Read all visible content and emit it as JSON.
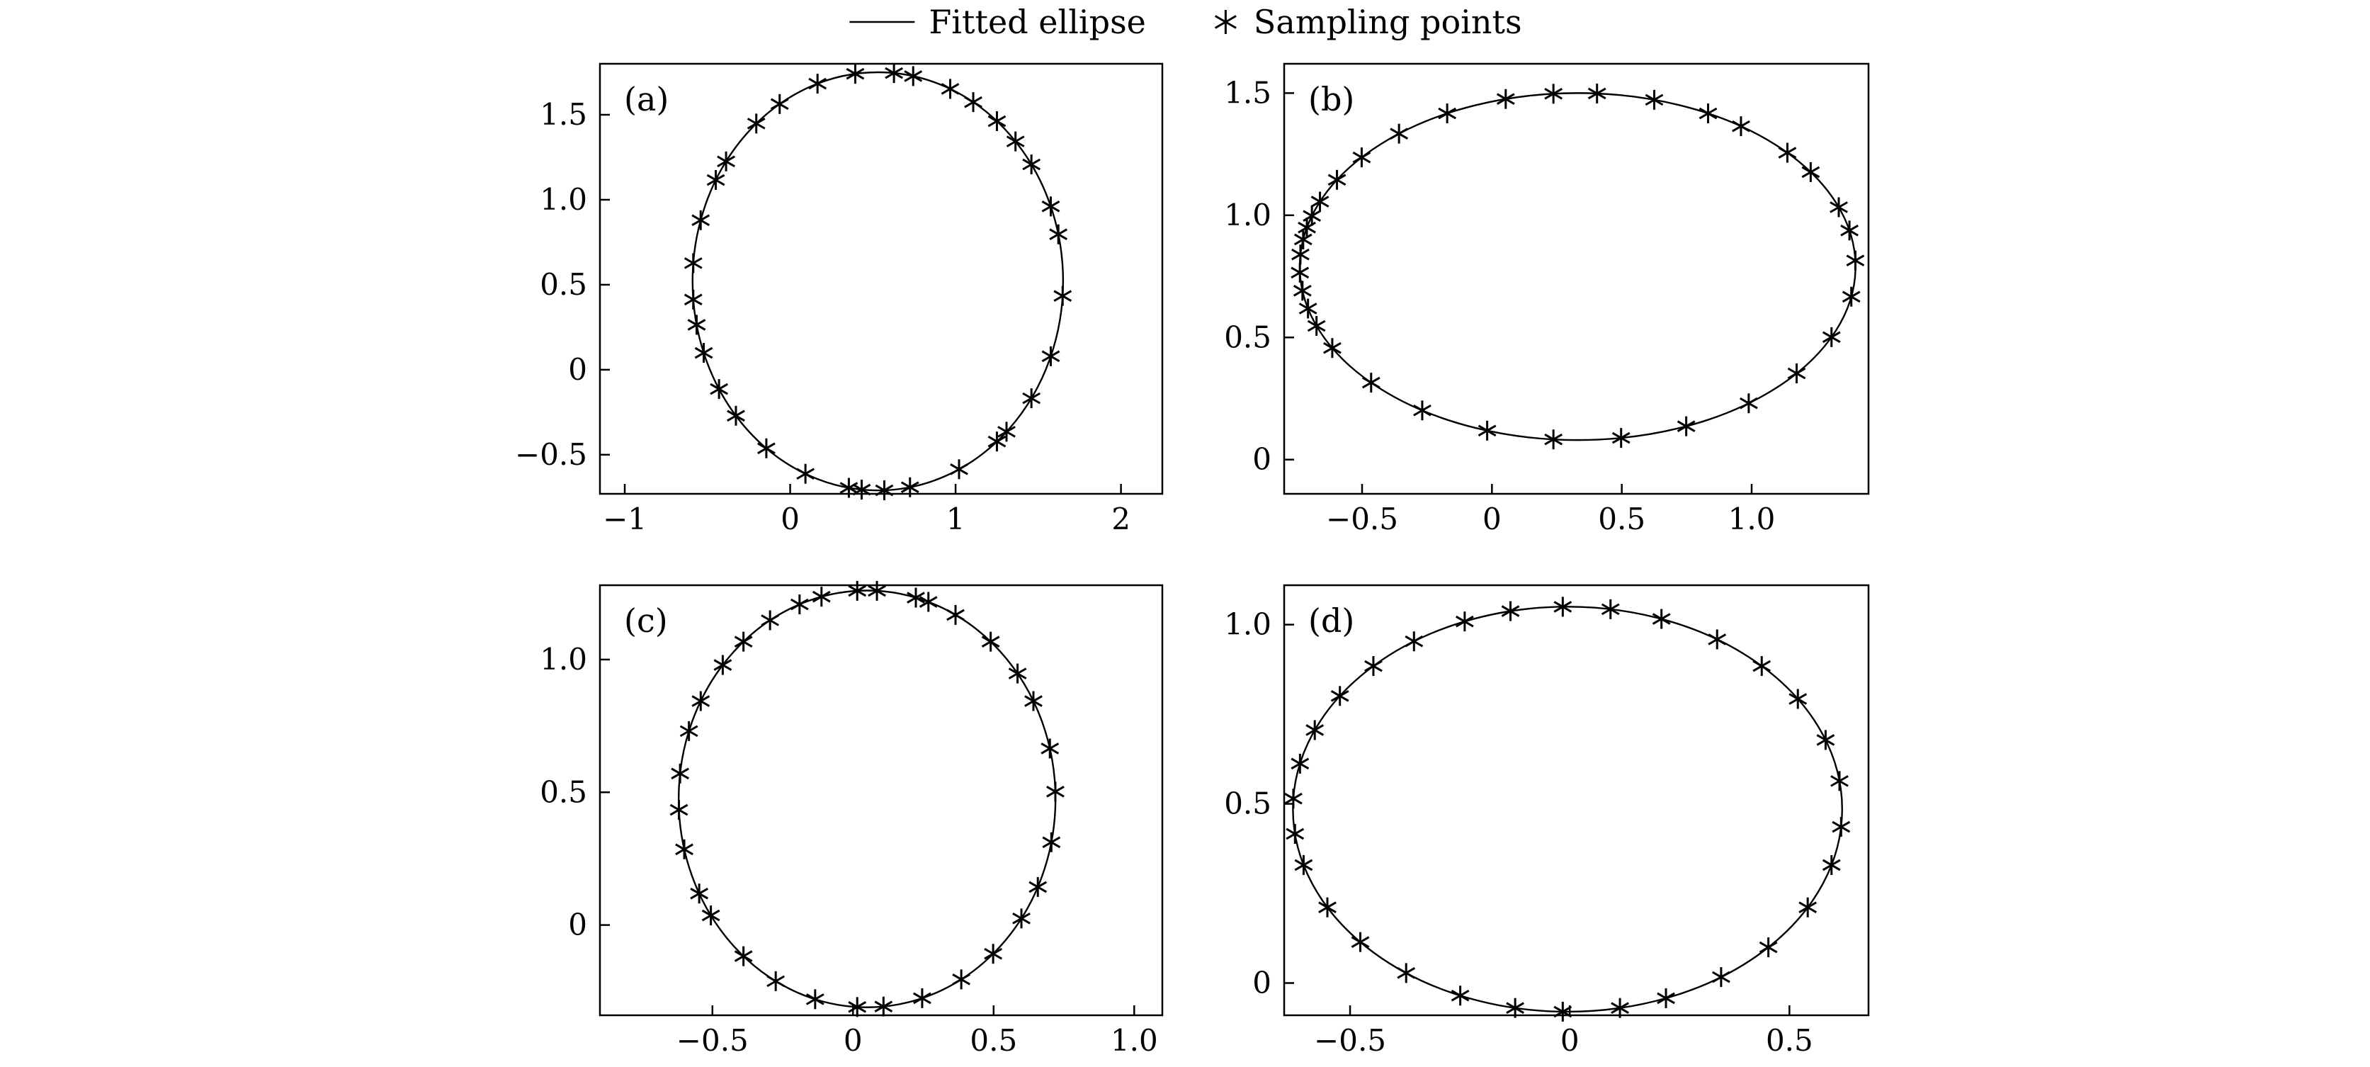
{
  "figure": {
    "background": "#ffffff",
    "line_color": "#000000",
    "marker": "asterisk-icon",
    "legend": {
      "position": "top-center",
      "items": [
        {
          "type": "line",
          "label": "Fitted ellipse"
        },
        {
          "type": "asterisk",
          "label": "Sampling points"
        }
      ]
    }
  },
  "chart_data": [
    {
      "type": "scatter",
      "panel": "(a)",
      "title": "",
      "xlabel": "",
      "ylabel": "",
      "grid": false,
      "xlim": [
        -1.15,
        2.25
      ],
      "ylim": [
        -0.73,
        1.8
      ],
      "xticks": {
        "values": [
          -1,
          0,
          1,
          2
        ],
        "labels": [
          "−1",
          "0",
          "1",
          "2"
        ]
      },
      "yticks": {
        "values": [
          -0.5,
          0,
          0.5,
          1.0,
          1.5
        ],
        "labels": [
          "−0.5",
          "0",
          "0.5",
          "1.0",
          "1.5"
        ]
      },
      "series": [
        {
          "name": "Fitted ellipse",
          "kind": "ellipse-outline"
        },
        {
          "name": "Sampling points",
          "kind": "markers-on-ellipse"
        }
      ],
      "ellipse": {
        "cx": 0.53,
        "cy": 0.52,
        "rx": 1.12,
        "ry": 1.23,
        "rotation_deg": 0
      },
      "point_angles_deg": [
        97,
        85,
        79,
        67,
        59,
        50,
        42,
        34,
        21,
        13,
        -4,
        -21,
        -34,
        -46,
        -50,
        -64,
        -80,
        -88,
        -95,
        -99,
        -113,
        -127,
        -140,
        -149,
        -160,
        -168,
        -175,
        175,
        163,
        151,
        145,
        131,
        122,
        109
      ]
    },
    {
      "type": "scatter",
      "panel": "(b)",
      "title": "",
      "xlabel": "",
      "ylabel": "",
      "grid": false,
      "xlim": [
        -0.8,
        1.45
      ],
      "ylim": [
        -0.14,
        1.62
      ],
      "xticks": {
        "values": [
          -0.5,
          0,
          0.5,
          1.0
        ],
        "labels": [
          "−0.5",
          "0",
          "0.5",
          "1.0"
        ]
      },
      "yticks": {
        "values": [
          0,
          0.5,
          1.0,
          1.5
        ],
        "labels": [
          "0",
          "0.5",
          "1.0",
          "1.5"
        ]
      },
      "series": [
        {
          "name": "Fitted ellipse",
          "kind": "ellipse-outline"
        },
        {
          "name": "Sampling points",
          "kind": "markers-on-ellipse"
        }
      ],
      "ellipse": {
        "cx": 0.33,
        "cy": 0.79,
        "rx": 1.07,
        "ry": 0.71,
        "rotation_deg": 0
      },
      "point_angles_deg": [
        86,
        74,
        62,
        54,
        41,
        33,
        20,
        12,
        2,
        -10,
        -24,
        -38,
        -52,
        -67,
        -81,
        -95,
        -109,
        -124,
        -138,
        -152,
        -160,
        -166,
        -172,
        -178,
        176,
        171,
        167,
        163,
        158,
        150,
        141,
        130,
        118,
        105,
        95
      ]
    },
    {
      "type": "scatter",
      "panel": "(c)",
      "title": "",
      "xlabel": "",
      "ylabel": "",
      "grid": false,
      "xlim": [
        -0.9,
        1.1
      ],
      "ylim": [
        -0.34,
        1.28
      ],
      "xticks": {
        "values": [
          -0.5,
          0,
          0.5,
          1.0
        ],
        "labels": [
          "−0.5",
          "0",
          "0.5",
          "1.0"
        ]
      },
      "yticks": {
        "values": [
          0,
          0.5,
          1.0
        ],
        "labels": [
          "0",
          "0.5",
          "1.0"
        ]
      },
      "series": [
        {
          "name": "Fitted ellipse",
          "kind": "ellipse-outline"
        },
        {
          "name": "Sampling points",
          "kind": "markers-on-ellipse"
        }
      ],
      "ellipse": {
        "cx": 0.05,
        "cy": 0.475,
        "rx": 0.67,
        "ry": 0.785,
        "rotation_deg": 0
      },
      "point_angles_deg": [
        93,
        87,
        75,
        71,
        62,
        49,
        37,
        28,
        14,
        2,
        -12,
        -25,
        -35,
        -48,
        -60,
        -73,
        -85,
        -93,
        -106,
        -119,
        -131,
        -146,
        -153,
        -166,
        -177,
        173,
        161,
        152,
        140,
        131,
        121,
        111,
        104
      ]
    },
    {
      "type": "scatter",
      "panel": "(d)",
      "title": "",
      "xlabel": "",
      "ylabel": "",
      "grid": false,
      "xlim": [
        -0.65,
        0.68
      ],
      "ylim": [
        -0.09,
        1.11
      ],
      "xticks": {
        "values": [
          -0.5,
          0,
          0.5
        ],
        "labels": [
          "−0.5",
          "0",
          "0.5"
        ]
      },
      "yticks": {
        "values": [
          0,
          0.5,
          1.0
        ],
        "labels": [
          "0",
          "0.5",
          "1.0"
        ]
      },
      "series": [
        {
          "name": "Fitted ellipse",
          "kind": "ellipse-outline"
        },
        {
          "name": "Sampling points",
          "kind": "markers-on-ellipse"
        }
      ],
      "ellipse": {
        "cx": -0.005,
        "cy": 0.485,
        "rx": 0.625,
        "ry": 0.565,
        "rotation_deg": 0
      },
      "point_angles_deg": [
        91,
        81,
        70,
        57,
        45,
        33,
        20,
        8,
        -5,
        -16,
        -29,
        -43,
        -56,
        -69,
        -79,
        -91,
        -101,
        -113,
        -126,
        -139,
        -151,
        -164,
        -173,
        177,
        167,
        157,
        146,
        135,
        124,
        112,
        102
      ]
    }
  ]
}
